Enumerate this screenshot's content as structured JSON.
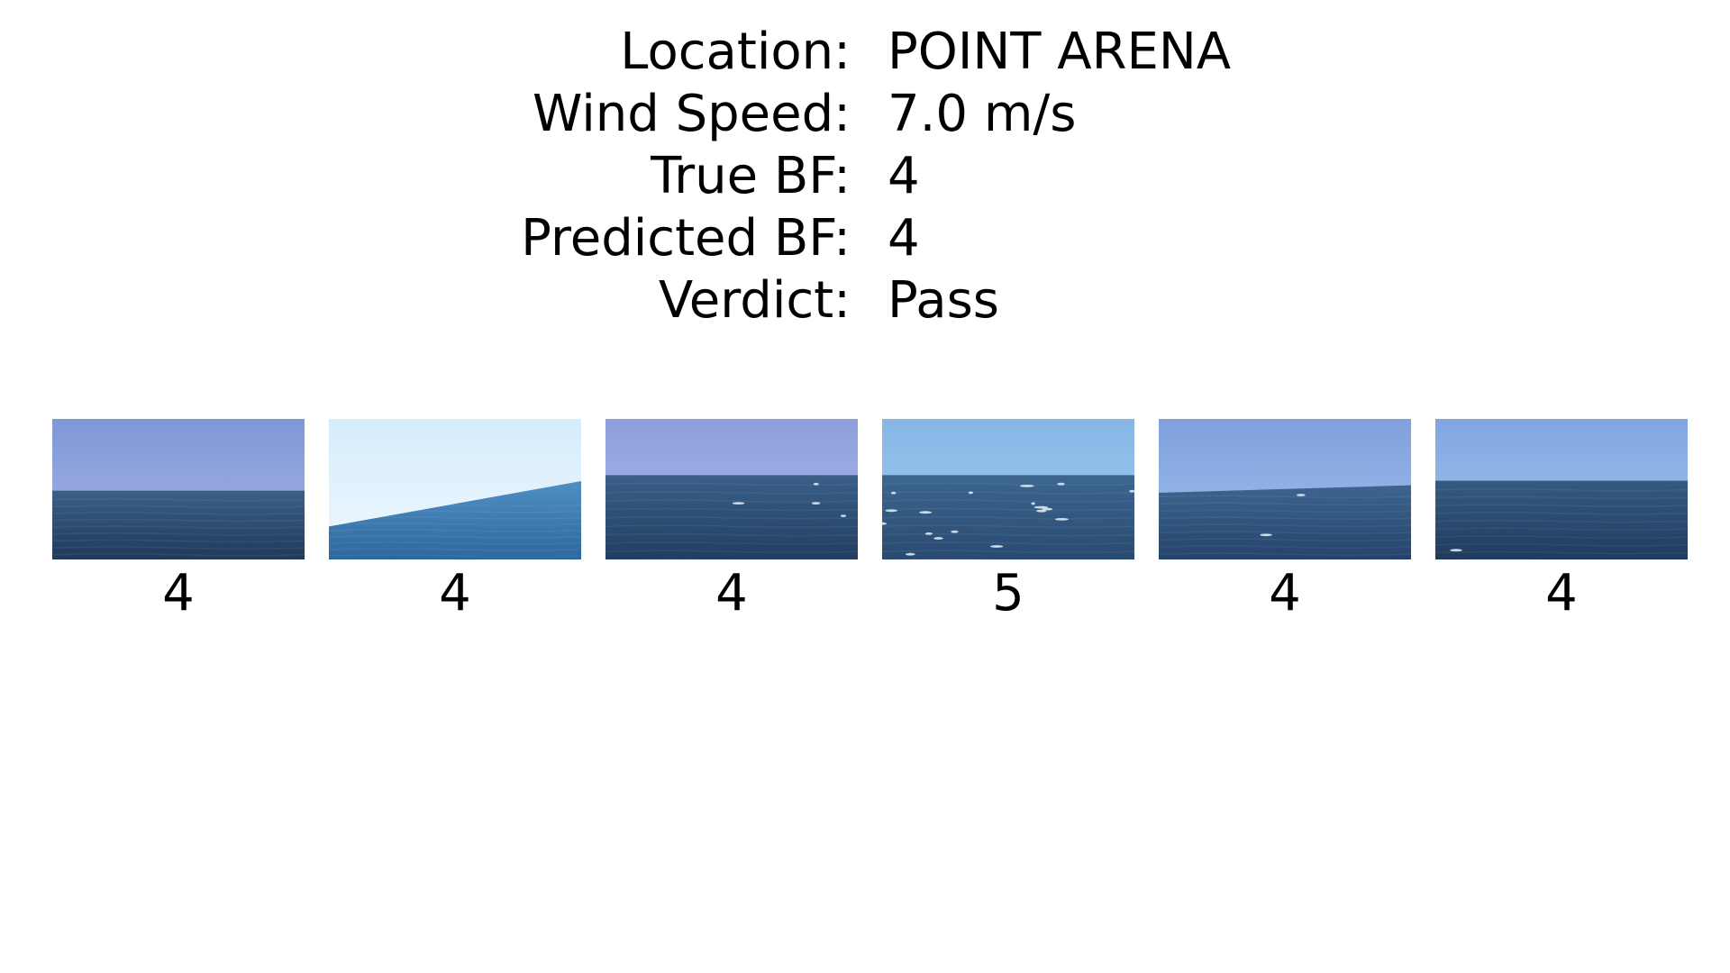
{
  "info": [
    {
      "label": "Location:",
      "value": "POINT ARENA"
    },
    {
      "label": "Wind Speed:",
      "value": "7.0 m/s"
    },
    {
      "label": "True BF:",
      "value": "4"
    },
    {
      "label": "Predicted BF:",
      "value": "4"
    },
    {
      "label": "Verdict:",
      "value": "Pass"
    }
  ],
  "frames": [
    {
      "label": "4",
      "sky_top": "#7f97d6",
      "sky_bottom": "#a9b6e6",
      "sea_top": "#3a5f86",
      "sea_bottom": "#1f3a5a",
      "horizon": 0.51,
      "tilt": 0.0,
      "glints": 0
    },
    {
      "label": "4",
      "sky_top": "#d6ecfb",
      "sky_bottom": "#eef8ff",
      "sea_top": "#4f8fc4",
      "sea_bottom": "#2e679c",
      "horizon": 0.55,
      "tilt": 0.12,
      "glints": 0
    },
    {
      "label": "4",
      "sky_top": "#8c9fdc",
      "sky_bottom": "#b2bdea",
      "sea_top": "#3a5f88",
      "sea_bottom": "#213e60",
      "horizon": 0.4,
      "tilt": 0.0,
      "glints": 4
    },
    {
      "label": "5",
      "sky_top": "#86b6e6",
      "sky_bottom": "#a7cef0",
      "sea_top": "#3c6690",
      "sea_bottom": "#2a4a70",
      "horizon": 0.4,
      "tilt": 0.0,
      "glints": 18
    },
    {
      "label": "4",
      "sky_top": "#7fa0dc",
      "sky_bottom": "#a4c0ec",
      "sea_top": "#3d6590",
      "sea_bottom": "#24436a",
      "horizon": 0.49,
      "tilt": 0.02,
      "glints": 2
    },
    {
      "label": "4",
      "sky_top": "#80a6e2",
      "sky_bottom": "#a8c6ee",
      "sea_top": "#355a82",
      "sea_bottom": "#1f3b5e",
      "horizon": 0.44,
      "tilt": 0.0,
      "glints": 1
    }
  ]
}
